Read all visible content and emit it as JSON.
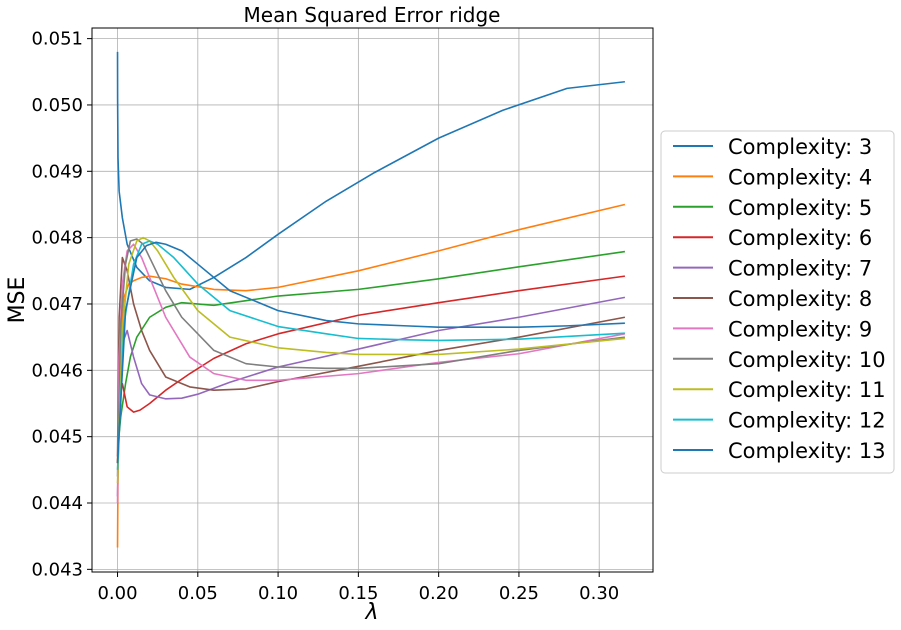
{
  "chart_data": {
    "type": "line",
    "title": "Mean Squared Error ridge",
    "xlabel": "λ",
    "ylabel": "MSE",
    "xlim": [
      -0.0159,
      0.3335
    ],
    "ylim": [
      0.04296,
      0.05116
    ],
    "xticks": [
      0.0,
      0.05,
      0.1,
      0.15,
      0.2,
      0.25,
      0.3
    ],
    "xtick_labels": [
      "0.00",
      "0.05",
      "0.10",
      "0.15",
      "0.20",
      "0.25",
      "0.30"
    ],
    "yticks": [
      0.043,
      0.044,
      0.045,
      0.046,
      0.047,
      0.048,
      0.049,
      0.05,
      0.051
    ],
    "ytick_labels": [
      "0.043",
      "0.044",
      "0.045",
      "0.046",
      "0.047",
      "0.048",
      "0.049",
      "0.050",
      "0.051"
    ],
    "grid": true,
    "legend_position": "outside-right",
    "series": [
      {
        "name": "Complexity: 3",
        "color": "#1f77b4",
        "x": [
          0,
          5e-05,
          0.0003,
          0.001,
          0.003,
          0.006,
          0.012,
          0.02,
          0.03,
          0.045,
          0.06,
          0.08,
          0.1,
          0.13,
          0.16,
          0.2,
          0.24,
          0.28,
          0.316
        ],
        "y": [
          0.0508,
          0.0501,
          0.0492,
          0.0487,
          0.0483,
          0.0479,
          0.04755,
          0.04735,
          0.04725,
          0.04722,
          0.0474,
          0.0477,
          0.04805,
          0.04855,
          0.04898,
          0.0495,
          0.04992,
          0.05025,
          0.05035
        ]
      },
      {
        "name": "Complexity: 4",
        "color": "#ff7f0e",
        "x": [
          0,
          0.0003,
          0.001,
          0.002,
          0.004,
          0.007,
          0.01,
          0.015,
          0.02,
          0.03,
          0.04,
          0.06,
          0.08,
          0.1,
          0.15,
          0.2,
          0.25,
          0.316
        ],
        "y": [
          0.04333,
          0.0445,
          0.0456,
          0.0465,
          0.0471,
          0.0473,
          0.04735,
          0.0474,
          0.04742,
          0.04738,
          0.0473,
          0.04722,
          0.0472,
          0.04725,
          0.0475,
          0.0478,
          0.04812,
          0.0485
        ]
      },
      {
        "name": "Complexity: 5",
        "color": "#2ca02c",
        "x": [
          0,
          0.0005,
          0.002,
          0.005,
          0.008,
          0.012,
          0.02,
          0.03,
          0.04,
          0.06,
          0.08,
          0.1,
          0.15,
          0.2,
          0.25,
          0.316
        ],
        "y": [
          0.0446,
          0.0449,
          0.0453,
          0.0458,
          0.0462,
          0.0465,
          0.0468,
          0.04695,
          0.04702,
          0.04698,
          0.04705,
          0.04712,
          0.04722,
          0.04738,
          0.04756,
          0.04779
        ]
      },
      {
        "name": "Complexity: 6",
        "color": "#d62728",
        "x": [
          0,
          0.001,
          0.003,
          0.006,
          0.01,
          0.014,
          0.02,
          0.03,
          0.045,
          0.06,
          0.08,
          0.1,
          0.15,
          0.2,
          0.25,
          0.316
        ],
        "y": [
          0.0446,
          0.0456,
          0.0458,
          0.04545,
          0.04537,
          0.0454,
          0.0455,
          0.0457,
          0.04595,
          0.04618,
          0.0464,
          0.04655,
          0.04683,
          0.04702,
          0.0472,
          0.04742
        ]
      },
      {
        "name": "Complexity: 7",
        "color": "#9467bd",
        "x": [
          0,
          0.001,
          0.003,
          0.006,
          0.01,
          0.015,
          0.02,
          0.03,
          0.04,
          0.05,
          0.07,
          0.1,
          0.15,
          0.2,
          0.25,
          0.316
        ],
        "y": [
          0.0441,
          0.0455,
          0.0464,
          0.0466,
          0.0462,
          0.0458,
          0.04563,
          0.04557,
          0.04558,
          0.04564,
          0.04582,
          0.04605,
          0.04632,
          0.0466,
          0.0468,
          0.0471
        ]
      },
      {
        "name": "Complexity: 8",
        "color": "#8c564b",
        "x": [
          0,
          0.001,
          0.003,
          0.006,
          0.01,
          0.015,
          0.02,
          0.03,
          0.045,
          0.06,
          0.08,
          0.1,
          0.15,
          0.2,
          0.25,
          0.316
        ],
        "y": [
          0.0447,
          0.0468,
          0.0477,
          0.0475,
          0.047,
          0.0466,
          0.0463,
          0.0459,
          0.04575,
          0.0457,
          0.04572,
          0.04583,
          0.04606,
          0.0463,
          0.0465,
          0.0468
        ]
      },
      {
        "name": "Complexity: 9",
        "color": "#e377c2",
        "x": [
          0,
          0.001,
          0.003,
          0.006,
          0.01,
          0.015,
          0.02,
          0.03,
          0.045,
          0.06,
          0.08,
          0.1,
          0.15,
          0.2,
          0.25,
          0.316
        ],
        "y": [
          0.044,
          0.0462,
          0.0473,
          0.0478,
          0.0479,
          0.0477,
          0.0474,
          0.0468,
          0.0462,
          0.04595,
          0.04585,
          0.04585,
          0.04595,
          0.04612,
          0.04625,
          0.04655
        ]
      },
      {
        "name": "Complexity: 10",
        "color": "#7f7f7f",
        "x": [
          0,
          0.002,
          0.005,
          0.008,
          0.012,
          0.016,
          0.02,
          0.03,
          0.04,
          0.06,
          0.08,
          0.1,
          0.13,
          0.15,
          0.2,
          0.25,
          0.316
        ],
        "y": [
          0.0444,
          0.0467,
          0.0476,
          0.04795,
          0.04798,
          0.0479,
          0.0477,
          0.0472,
          0.0468,
          0.0463,
          0.0461,
          0.04605,
          0.04603,
          0.04603,
          0.0461,
          0.0463,
          0.0465
        ]
      },
      {
        "name": "Complexity: 11",
        "color": "#bcbd22",
        "x": [
          0,
          0.003,
          0.007,
          0.012,
          0.016,
          0.02,
          0.025,
          0.035,
          0.05,
          0.07,
          0.1,
          0.13,
          0.15,
          0.2,
          0.25,
          0.316
        ],
        "y": [
          0.0443,
          0.0466,
          0.0476,
          0.04795,
          0.048,
          0.04795,
          0.0478,
          0.0474,
          0.0469,
          0.0465,
          0.04634,
          0.04627,
          0.04624,
          0.04624,
          0.04632,
          0.04648
        ]
      },
      {
        "name": "Complexity: 12",
        "color": "#17becf",
        "x": [
          0,
          0.004,
          0.01,
          0.015,
          0.02,
          0.025,
          0.035,
          0.05,
          0.07,
          0.1,
          0.13,
          0.15,
          0.18,
          0.2,
          0.25,
          0.316
        ],
        "y": [
          0.0445,
          0.0467,
          0.0476,
          0.0479,
          0.04795,
          0.0479,
          0.0477,
          0.0473,
          0.0469,
          0.04666,
          0.04655,
          0.04648,
          0.04646,
          0.04645,
          0.04647,
          0.04656
        ]
      },
      {
        "name": "Complexity: 13",
        "color": "#1f77b4",
        "x": [
          0,
          0.005,
          0.012,
          0.018,
          0.024,
          0.03,
          0.04,
          0.05,
          0.07,
          0.1,
          0.13,
          0.15,
          0.18,
          0.2,
          0.25,
          0.28,
          0.316
        ],
        "y": [
          0.0446,
          0.0469,
          0.0477,
          0.04788,
          0.04793,
          0.0479,
          0.0478,
          0.0476,
          0.0472,
          0.0469,
          0.04675,
          0.0467,
          0.04667,
          0.04665,
          0.04665,
          0.04667,
          0.04671
        ]
      }
    ]
  }
}
